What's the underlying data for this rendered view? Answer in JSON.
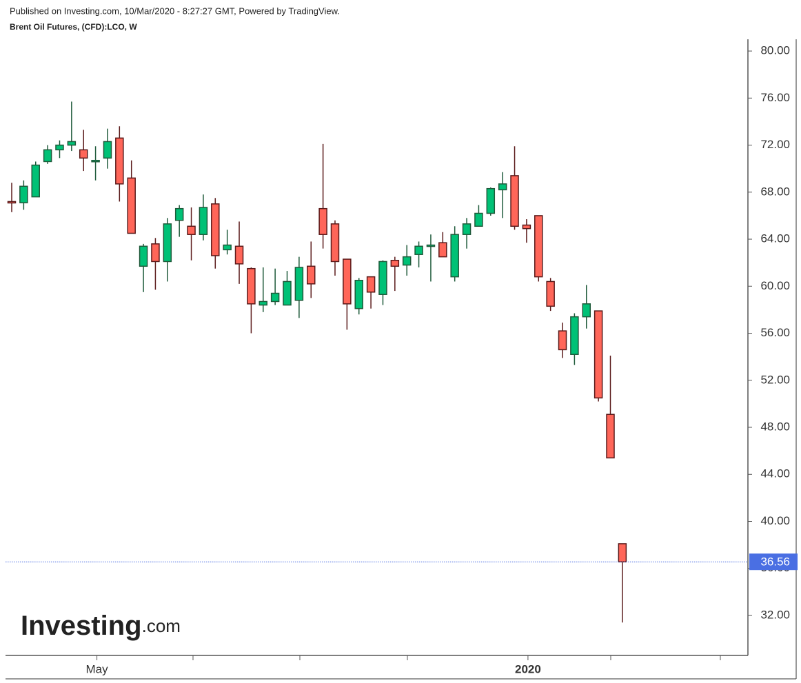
{
  "chart_data": {
    "type": "candlestick",
    "published": "Published on Investing.com, 10/Mar/2020 - 8:27:27 GMT, Powered by TradingView.",
    "title": "Brent Oil Futures, (CFD):LCO, W",
    "logo": "Investing",
    "logo_suffix": ".com",
    "categories": [
      null,
      null,
      null,
      null,
      null,
      null,
      null,
      "May",
      null,
      null,
      null,
      null,
      null,
      null,
      null,
      null,
      null,
      null,
      null,
      null,
      null,
      null,
      null,
      null,
      null,
      null,
      null,
      null,
      null,
      null,
      null,
      null,
      null,
      null,
      null,
      null,
      null,
      null,
      null,
      null,
      null,
      null,
      null,
      "2020",
      null,
      null,
      null,
      null,
      null,
      null,
      null,
      null
    ],
    "open": [
      67.2,
      67.1,
      67.6,
      70.6,
      71.6,
      72.0,
      71.6,
      70.6,
      70.9,
      72.6,
      69.2,
      61.7,
      63.6,
      62.1,
      65.6,
      65.1,
      64.4,
      67.0,
      63.1,
      63.4,
      61.5,
      58.4,
      58.7,
      58.4,
      58.8,
      61.7,
      66.6,
      65.3,
      62.3,
      58.1,
      60.8,
      59.3,
      62.2,
      61.8,
      62.7,
      63.4,
      63.7,
      60.8,
      64.4,
      65.1,
      66.2,
      68.2,
      69.4,
      65.2,
      66.0,
      60.4,
      56.2,
      54.2,
      57.4,
      57.9,
      49.1,
      38.1
    ],
    "high": [
      68.8,
      69.0,
      70.6,
      72.0,
      72.4,
      75.7,
      73.3,
      71.9,
      73.4,
      73.6,
      70.7,
      63.6,
      64.1,
      65.8,
      66.9,
      66.7,
      67.8,
      67.5,
      64.8,
      65.5,
      61.6,
      61.6,
      61.5,
      61.3,
      62.5,
      63.8,
      72.1,
      65.6,
      62.3,
      60.7,
      60.8,
      62.2,
      62.5,
      63.5,
      63.8,
      64.4,
      64.6,
      65.1,
      65.8,
      66.9,
      68.4,
      69.7,
      71.9,
      65.7,
      66.0,
      60.7,
      56.9,
      57.7,
      60.1,
      57.9,
      54.1,
      38.1
    ],
    "low": [
      66.3,
      66.5,
      67.6,
      70.4,
      70.9,
      71.5,
      69.8,
      69.0,
      70.0,
      67.2,
      64.5,
      59.5,
      59.7,
      60.4,
      64.2,
      62.2,
      63.9,
      61.5,
      62.7,
      60.2,
      56.0,
      57.8,
      58.4,
      58.4,
      57.3,
      59.0,
      63.2,
      60.9,
      56.3,
      57.6,
      58.1,
      58.4,
      59.6,
      60.9,
      61.6,
      60.4,
      62.5,
      60.4,
      63.2,
      65.1,
      66.0,
      65.8,
      64.8,
      63.7,
      60.4,
      57.9,
      53.9,
      53.3,
      56.4,
      50.2,
      45.4,
      31.4
    ],
    "close": [
      67.1,
      68.5,
      70.3,
      71.6,
      72.0,
      72.3,
      70.9,
      70.7,
      72.3,
      68.7,
      64.5,
      63.4,
      62.1,
      65.3,
      66.6,
      64.4,
      66.7,
      62.6,
      63.5,
      61.9,
      58.5,
      58.7,
      59.4,
      60.4,
      61.6,
      60.2,
      64.4,
      62.1,
      58.5,
      60.5,
      59.5,
      62.1,
      61.7,
      62.5,
      63.4,
      63.5,
      62.5,
      64.4,
      65.3,
      66.2,
      68.3,
      68.7,
      65.1,
      64.9,
      60.8,
      58.3,
      54.6,
      57.4,
      58.5,
      50.5,
      45.4,
      36.56
    ],
    "up_color": "#00c176",
    "down_color": "#ff6659",
    "up_border": "#1e5a3a",
    "down_border": "#5a1a1a",
    "last_price": 36.56,
    "last_price_color": "#4a6fe3",
    "ylim": [
      28.6,
      81.0
    ],
    "yticks": [
      {
        "value": 32,
        "label": "32.00"
      },
      {
        "value": 36,
        "label": "36.00"
      },
      {
        "value": 40,
        "label": "40.00"
      },
      {
        "value": 44,
        "label": "44.00"
      },
      {
        "value": 48,
        "label": "48.00"
      },
      {
        "value": 52,
        "label": "52.00"
      },
      {
        "value": 56,
        "label": "56.00"
      },
      {
        "value": 60,
        "label": "60.00"
      },
      {
        "value": 64,
        "label": "64.00"
      },
      {
        "value": 68,
        "label": "68.00"
      },
      {
        "value": 72,
        "label": "72.00"
      },
      {
        "value": 76,
        "label": "76.00"
      },
      {
        "value": 80,
        "label": "80.00"
      }
    ]
  }
}
